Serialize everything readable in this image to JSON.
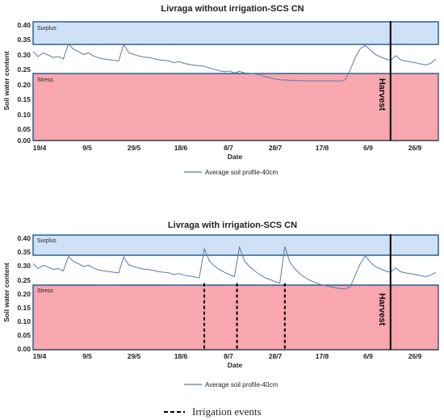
{
  "figure_legend": {
    "irrigation_label": "Irrigation events"
  },
  "chart_data": [
    {
      "type": "line",
      "title": "Livraga without irrigation-SCS CN",
      "xlabel": "Date",
      "ylabel": "Soil water content",
      "ylim": [
        0,
        0.4
      ],
      "yticks": [
        "0.40",
        "0.35",
        "0.30",
        "0.25",
        "0.20",
        "0.15",
        "0.10",
        "0.05",
        "0.00"
      ],
      "xticks": [
        "19/4",
        "9/5",
        "29/5",
        "18/6",
        "8/7",
        "28/7",
        "17/8",
        "6/9",
        "26/9"
      ],
      "xlim_days": [
        0,
        161
      ],
      "zones": {
        "surplus_label": "Surplus",
        "surplus_range": [
          0.327,
          0.4
        ],
        "stress_label": "Stress",
        "stress_range": [
          0,
          0.232
        ]
      },
      "harvest": {
        "label": "Harvest",
        "day": 142
      },
      "irrigation_days": [],
      "legend": "Average soil profile-40cm",
      "series": [
        {
          "name": "Average soil profile-40cm",
          "line_color": "#5a79a8",
          "x": [
            0,
            2,
            4,
            6,
            8,
            10,
            12,
            14,
            16,
            18,
            20,
            22,
            24,
            26,
            28,
            30,
            32,
            34,
            36,
            38,
            40,
            42,
            44,
            46,
            48,
            50,
            52,
            54,
            56,
            58,
            60,
            62,
            64,
            66,
            68,
            70,
            72,
            74,
            76,
            78,
            80,
            82,
            84,
            86,
            88,
            90,
            92,
            94,
            96,
            98,
            100,
            102,
            104,
            106,
            108,
            110,
            112,
            114,
            116,
            118,
            120,
            122,
            124,
            126,
            128,
            130,
            132,
            134,
            136,
            138,
            140,
            142,
            144,
            146,
            148,
            150,
            152,
            154,
            156,
            158,
            160
          ],
          "y": [
            0.3,
            0.283,
            0.295,
            0.288,
            0.28,
            0.283,
            0.275,
            0.325,
            0.308,
            0.3,
            0.29,
            0.295,
            0.285,
            0.278,
            0.275,
            0.273,
            0.27,
            0.268,
            0.324,
            0.296,
            0.29,
            0.285,
            0.281,
            0.28,
            0.276,
            0.272,
            0.27,
            0.268,
            0.262,
            0.266,
            0.26,
            0.257,
            0.254,
            0.252,
            0.25,
            0.245,
            0.24,
            0.235,
            0.232,
            0.234,
            0.228,
            0.233,
            0.228,
            0.226,
            0.225,
            0.221,
            0.216,
            0.212,
            0.207,
            0.205,
            0.204,
            0.203,
            0.202,
            0.202,
            0.201,
            0.201,
            0.201,
            0.201,
            0.201,
            0.201,
            0.201,
            0.2,
            0.205,
            0.238,
            0.28,
            0.31,
            0.32,
            0.305,
            0.29,
            0.282,
            0.275,
            0.27,
            0.286,
            0.272,
            0.268,
            0.265,
            0.262,
            0.258,
            0.255,
            0.26,
            0.275
          ]
        }
      ]
    },
    {
      "type": "line",
      "title": "Livraga with irrigation-SCS CN",
      "xlabel": "Date",
      "ylabel": "Soil water content",
      "ylim": [
        0,
        0.4
      ],
      "yticks": [
        "0.40",
        "0.35",
        "0.30",
        "0.25",
        "0.20",
        "0.15",
        "0.10",
        "0.05",
        "0.00"
      ],
      "xticks": [
        "19/4",
        "9/5",
        "29/5",
        "18/6",
        "8/7",
        "28/7",
        "17/8",
        "6/9",
        "26/9"
      ],
      "xlim_days": [
        0,
        161
      ],
      "zones": {
        "surplus_label": "Surplus",
        "surplus_range": [
          0.335,
          0.4
        ],
        "stress_label": "Stress",
        "stress_range": [
          0,
          0.232
        ]
      },
      "harvest": {
        "label": "Harvest",
        "day": 142
      },
      "irrigation_days": [
        68,
        81,
        100
      ],
      "legend": "Average soil profile-40cm",
      "series": [
        {
          "name": "Average soil profile-40cm",
          "line_color": "#5a79a8",
          "x": [
            0,
            2,
            4,
            6,
            8,
            10,
            12,
            14,
            16,
            18,
            20,
            22,
            24,
            26,
            28,
            30,
            32,
            34,
            36,
            38,
            40,
            42,
            44,
            46,
            48,
            50,
            52,
            54,
            56,
            58,
            60,
            62,
            64,
            66,
            68,
            70,
            72,
            74,
            76,
            78,
            80,
            82,
            84,
            86,
            88,
            90,
            92,
            94,
            96,
            98,
            100,
            102,
            104,
            106,
            108,
            110,
            112,
            114,
            116,
            118,
            120,
            122,
            124,
            126,
            128,
            130,
            132,
            134,
            136,
            138,
            140,
            142,
            144,
            146,
            148,
            150,
            152,
            154,
            156,
            158,
            160
          ],
          "y": [
            0.3,
            0.283,
            0.295,
            0.288,
            0.28,
            0.283,
            0.275,
            0.325,
            0.308,
            0.3,
            0.29,
            0.295,
            0.285,
            0.278,
            0.275,
            0.273,
            0.27,
            0.268,
            0.324,
            0.296,
            0.29,
            0.285,
            0.281,
            0.28,
            0.276,
            0.272,
            0.27,
            0.268,
            0.262,
            0.266,
            0.26,
            0.257,
            0.254,
            0.25,
            0.352,
            0.31,
            0.292,
            0.28,
            0.27,
            0.262,
            0.255,
            0.358,
            0.31,
            0.29,
            0.275,
            0.262,
            0.252,
            0.245,
            0.238,
            0.232,
            0.36,
            0.305,
            0.282,
            0.265,
            0.252,
            0.242,
            0.235,
            0.228,
            0.224,
            0.22,
            0.216,
            0.213,
            0.212,
            0.22,
            0.26,
            0.3,
            0.328,
            0.305,
            0.29,
            0.282,
            0.275,
            0.27,
            0.286,
            0.272,
            0.268,
            0.265,
            0.262,
            0.258,
            0.255,
            0.26,
            0.27
          ]
        }
      ]
    }
  ]
}
